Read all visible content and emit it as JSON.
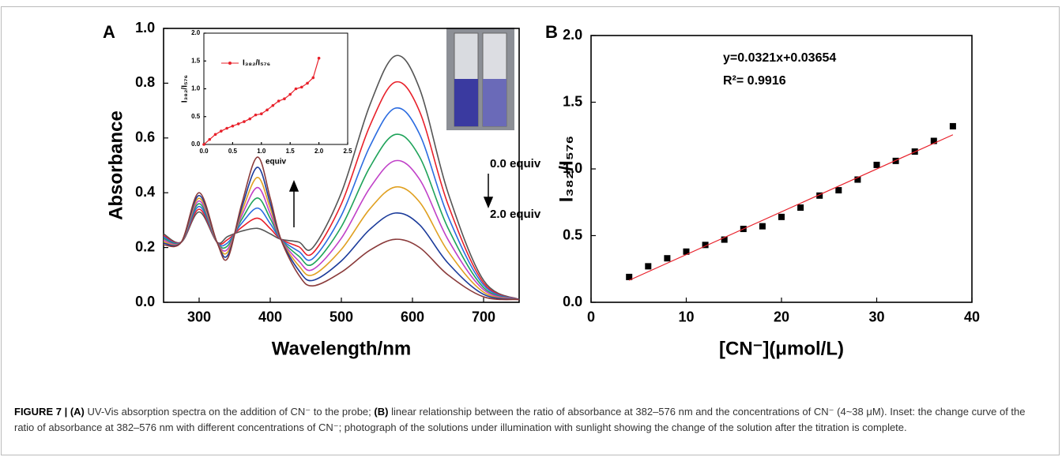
{
  "chart_data": [
    {
      "type": "line",
      "panel": "A",
      "x_label": "Wavelength/nm",
      "y_label": "Absorbance",
      "x": [
        250,
        275,
        300,
        325,
        340,
        360,
        382,
        400,
        415,
        440,
        460,
        500,
        540,
        576,
        610,
        650,
        700,
        750
      ],
      "xlim": [
        250,
        750
      ],
      "xticks": [
        300,
        400,
        500,
        600,
        700
      ],
      "ylim": [
        0,
        1.0
      ],
      "yticks": [
        {
          "value": 0,
          "label": "0.0"
        },
        {
          "value": 0.2,
          "label": "0.2"
        },
        {
          "value": 0.4,
          "label": "0.4"
        },
        {
          "value": 0.6,
          "label": "0.6"
        },
        {
          "value": 0.8,
          "label": "0.8"
        },
        {
          "value": 1.0,
          "label": "1.0"
        }
      ],
      "annotations": [
        "0.0 equiv",
        "2.0 equiv"
      ],
      "series": [
        {
          "color": "#555555",
          "values": [
            0.25,
            0.22,
            0.33,
            0.22,
            0.24,
            0.26,
            0.27,
            0.25,
            0.23,
            0.22,
            0.2,
            0.4,
            0.72,
            0.9,
            0.78,
            0.4,
            0.08,
            0.01
          ]
        },
        {
          "color": "#e8202a",
          "values": [
            0.244,
            0.22,
            0.34,
            0.22,
            0.229,
            0.274,
            0.307,
            0.269,
            0.23,
            0.203,
            0.18,
            0.359,
            0.644,
            0.804,
            0.697,
            0.357,
            0.071,
            0.01
          ]
        },
        {
          "color": "#2a6be0",
          "values": [
            0.239,
            0.22,
            0.35,
            0.22,
            0.217,
            0.289,
            0.344,
            0.287,
            0.23,
            0.186,
            0.16,
            0.317,
            0.569,
            0.709,
            0.614,
            0.314,
            0.063,
            0.01
          ]
        },
        {
          "color": "#1fa35a",
          "values": [
            0.233,
            0.22,
            0.36,
            0.22,
            0.206,
            0.303,
            0.381,
            0.306,
            0.23,
            0.169,
            0.14,
            0.276,
            0.493,
            0.613,
            0.531,
            0.271,
            0.054,
            0.01
          ]
        },
        {
          "color": "#c040c8",
          "values": [
            0.227,
            0.22,
            0.37,
            0.22,
            0.194,
            0.317,
            0.419,
            0.324,
            0.23,
            0.151,
            0.12,
            0.234,
            0.417,
            0.517,
            0.449,
            0.229,
            0.046,
            0.01
          ]
        },
        {
          "color": "#e0a020",
          "values": [
            0.221,
            0.22,
            0.38,
            0.22,
            0.183,
            0.331,
            0.456,
            0.343,
            0.23,
            0.134,
            0.1,
            0.193,
            0.341,
            0.421,
            0.366,
            0.186,
            0.037,
            0.01
          ]
        },
        {
          "color": "#1a3a9a",
          "values": [
            0.216,
            0.22,
            0.39,
            0.22,
            0.171,
            0.346,
            0.493,
            0.361,
            0.23,
            0.117,
            0.08,
            0.151,
            0.266,
            0.326,
            0.283,
            0.143,
            0.029,
            0.01
          ]
        },
        {
          "color": "#8a3a3a",
          "values": [
            0.21,
            0.22,
            0.4,
            0.22,
            0.16,
            0.36,
            0.53,
            0.38,
            0.23,
            0.1,
            0.06,
            0.11,
            0.19,
            0.23,
            0.2,
            0.1,
            0.02,
            0.01
          ]
        }
      ]
    },
    {
      "type": "line",
      "x_label": "equiv",
      "y_label": "I₃₈₂/I₅₇₆",
      "x": [
        0,
        0.1,
        0.2,
        0.3,
        0.4,
        0.5,
        0.6,
        0.7,
        0.8,
        0.9,
        1.0,
        1.1,
        1.2,
        1.3,
        1.4,
        1.5,
        1.6,
        1.7,
        1.8,
        1.9,
        2.0
      ],
      "xlim": [
        0,
        2.5
      ],
      "xticks": [
        {
          "value": 0,
          "label": "0.0"
        },
        {
          "value": 0.5,
          "label": "0.5"
        },
        {
          "value": 1.0,
          "label": "1.0"
        },
        {
          "value": 1.5,
          "label": "1.5"
        },
        {
          "value": 2.0,
          "label": "2.0"
        },
        {
          "value": 2.5,
          "label": "2.5"
        }
      ],
      "ylim": [
        0,
        2.0
      ],
      "yticks": [
        {
          "value": 0,
          "label": "0.0"
        },
        {
          "value": 0.5,
          "label": "0.5"
        },
        {
          "value": 1.0,
          "label": "1.0"
        },
        {
          "value": 1.5,
          "label": "1.5"
        },
        {
          "value": 2.0,
          "label": "2.0"
        }
      ],
      "markers": true,
      "series": [
        {
          "name": "I₃₈₂/I₅₇₆",
          "color": "#e8202a",
          "values": [
            0,
            0.09,
            0.18,
            0.24,
            0.29,
            0.33,
            0.37,
            0.41,
            0.46,
            0.53,
            0.55,
            0.62,
            0.7,
            0.78,
            0.82,
            0.9,
            1.0,
            1.03,
            1.1,
            1.2,
            1.55
          ]
        }
      ]
    },
    {
      "type": "scatter",
      "panel": "B",
      "x_label": "[CN⁻](μmol/L)",
      "y_label": "I₃₈₂/I₅₇₆",
      "xlim": [
        0,
        40
      ],
      "xticks": [
        0,
        10,
        20,
        30,
        40
      ],
      "ylim": [
        0,
        2.0
      ],
      "yticks": [
        {
          "value": 0,
          "label": "0.0"
        },
        {
          "value": 0.5,
          "label": "0.5"
        },
        {
          "value": 1.0,
          "label": "1.0"
        },
        {
          "value": 1.5,
          "label": "1.5"
        },
        {
          "value": 2.0,
          "label": "2.0"
        }
      ],
      "annotations": [
        "y=0.0321x+0.03654",
        "R²= 0.9916"
      ],
      "series": [
        {
          "color": "#000000",
          "style": "points",
          "x": [
            4,
            6,
            8,
            10,
            12,
            14,
            16,
            18,
            20,
            22,
            24,
            26,
            28,
            30,
            32,
            34,
            36,
            38
          ],
          "values": [
            0.19,
            0.27,
            0.33,
            0.38,
            0.43,
            0.47,
            0.55,
            0.57,
            0.64,
            0.71,
            0.8,
            0.84,
            0.92,
            1.03,
            1.06,
            1.13,
            1.21,
            1.32
          ]
        },
        {
          "color": "#e8202a",
          "style": "line",
          "x": [
            4,
            38
          ],
          "values": [
            0.165,
            1.256
          ]
        }
      ]
    }
  ],
  "caption": {
    "label": "FIGURE 7 |",
    "a_label": "(A)",
    "a_text": "UV-Vis absorption spectra on the addition of CN⁻ to the probe;",
    "b_label": "(B)",
    "b_text": "linear relationship between the ratio of absorbance at 382–576 nm and the concentrations of CN⁻ (4~38 μM). Inset: the change curve of the ratio of absorbance at 382–576 nm with different concentrations of CN⁻; photograph of the solutions under illumination with sunlight showing the change of the solution after the titration is complete."
  }
}
